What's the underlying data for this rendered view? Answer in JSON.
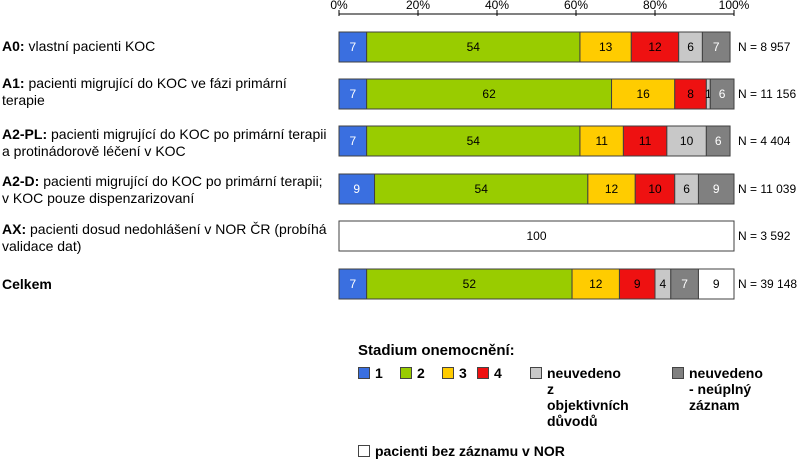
{
  "chart_data": {
    "type": "bar",
    "orientation": "horizontal",
    "stacked": true,
    "xlim": [
      0,
      100
    ],
    "x_ticks": [
      "0%",
      "20%",
      "40%",
      "60%",
      "80%",
      "100%"
    ],
    "grid": false,
    "segment_colors": [
      "#3a6fe0",
      "#99cc00",
      "#ffcc00",
      "#ee1111",
      "#c8c8c8",
      "#808080",
      "#ffffff"
    ],
    "segment_names": [
      "1",
      "2",
      "3",
      "4",
      "neuvedeno z objektivních důvodů",
      "neuvedeno - neúplný záznam",
      "pacienti bez záznamu v NOR"
    ],
    "rows": [
      {
        "code": "A0:",
        "label": "vlastní pacienti KOC",
        "n": "N = 8 957",
        "values": [
          7,
          54,
          13,
          12,
          6,
          7,
          0
        ]
      },
      {
        "code": "A1:",
        "label": "pacienti migrující do KOC ve fázi primární terapie",
        "n": "N = 11 156",
        "values": [
          7,
          62,
          16,
          8,
          1,
          6,
          0
        ]
      },
      {
        "code": "A2-PL:",
        "label": "pacienti migrující do KOC po primární terapii a protinádorově léčení v KOC",
        "n": "N = 4 404",
        "values": [
          7,
          54,
          11,
          11,
          10,
          6,
          0
        ]
      },
      {
        "code": "A2-D:",
        "label": "pacienti migrující do KOC po primární terapii; v KOC pouze  dispenzarizovaní",
        "n": "N = 11 039",
        "values": [
          9,
          54,
          12,
          10,
          6,
          9,
          0
        ]
      },
      {
        "code": "AX:",
        "label": "pacienti dosud nedohlášení v NOR ČR (probíhá validace dat)",
        "n": "N = 3 592",
        "values": [
          0,
          0,
          0,
          0,
          0,
          0,
          100
        ]
      },
      {
        "code": "Celkem",
        "label": "",
        "n": "N = 39 148",
        "values": [
          7,
          52,
          12,
          9,
          4,
          7,
          9
        ]
      }
    ],
    "legend": {
      "title": "Stadium onemocnění:",
      "items": [
        {
          "label": "1",
          "color": "#3a6fe0"
        },
        {
          "label": "2",
          "color": "#99cc00"
        },
        {
          "label": "3",
          "color": "#ffcc00"
        },
        {
          "label": "4",
          "color": "#ee1111"
        },
        {
          "label": "neuvedeno z objektivních důvodů",
          "color": "#c8c8c8"
        },
        {
          "label": "neuvedeno - neúplný záznam",
          "color": "#808080"
        },
        {
          "label": "pacienti bez záznamu v NOR",
          "color": "#ffffff"
        }
      ]
    }
  }
}
